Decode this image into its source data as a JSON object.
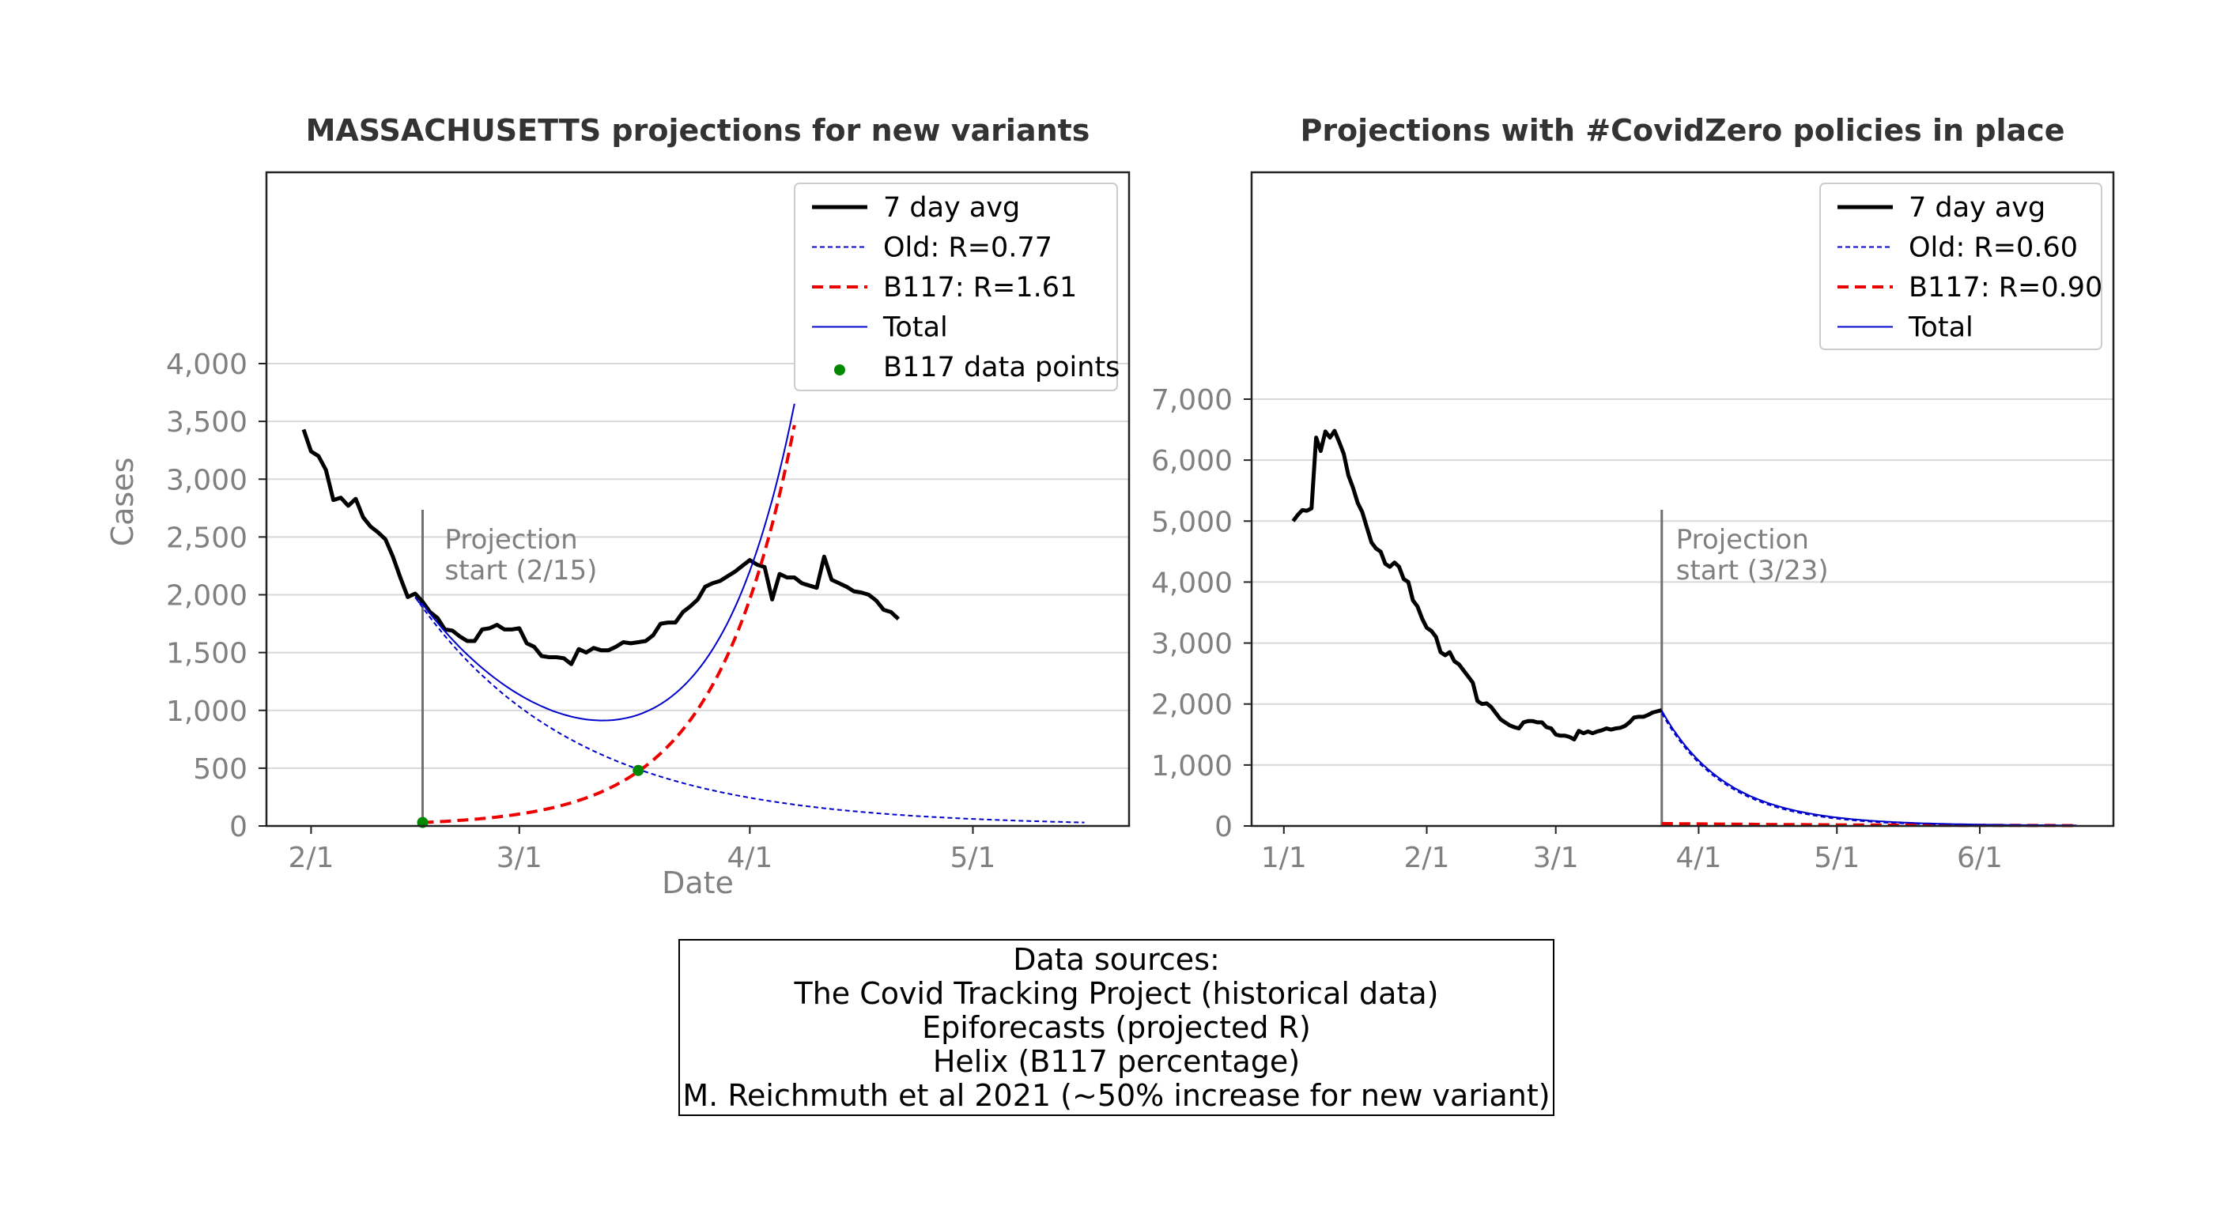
{
  "chart_data": [
    {
      "type": "line",
      "title": "MASSACHUSETTS projections for new variants",
      "xlabel": "Date",
      "ylabel": "Cases",
      "ylim": [
        0,
        4000
      ],
      "yticks": [
        0,
        500,
        1000,
        1500,
        2000,
        2500,
        3000,
        3500,
        4000
      ],
      "ytick_labels": [
        "0",
        "500",
        "1,000",
        "1,500",
        "2,000",
        "2,500",
        "3,000",
        "3,500",
        "4,000"
      ],
      "xticks": [
        0,
        28,
        59,
        89
      ],
      "xtick_labels": [
        "2/1",
        "3/1",
        "4/1",
        "5/1"
      ],
      "xlim": [
        -6,
        110
      ],
      "grid": "horizontal",
      "legend_position": "top-right",
      "annotation": {
        "text_line1": "Projection",
        "text_line2": "start (2/15)",
        "x": 15
      },
      "series": [
        {
          "name": "7 day avg",
          "style": "solid-thick",
          "color": "#000000",
          "x": [
            -1,
            0,
            1,
            2,
            3,
            4,
            5,
            6,
            7,
            8,
            9,
            10,
            11,
            12,
            13,
            14,
            15,
            16,
            17,
            18,
            19,
            20,
            21,
            22,
            23,
            24,
            25,
            26,
            27,
            28,
            29,
            30,
            31,
            32,
            33,
            34,
            35,
            36,
            37,
            38,
            39,
            40,
            41,
            42,
            43,
            44,
            45,
            46,
            47,
            48,
            49,
            50,
            51,
            52,
            53,
            54,
            55,
            56,
            57,
            58,
            59,
            60,
            61,
            62,
            63,
            64,
            65,
            66,
            67,
            68,
            69,
            70,
            71,
            72,
            73,
            74,
            75,
            76,
            77,
            78,
            79
          ],
          "y": [
            3430,
            3240,
            3200,
            3080,
            2820,
            2840,
            2770,
            2830,
            2670,
            2590,
            2540,
            2480,
            2330,
            2150,
            1980,
            2010,
            1940,
            1850,
            1800,
            1700,
            1690,
            1640,
            1600,
            1600,
            1700,
            1710,
            1740,
            1700,
            1700,
            1710,
            1580,
            1550,
            1470,
            1460,
            1460,
            1450,
            1400,
            1530,
            1500,
            1540,
            1520,
            1520,
            1550,
            1590,
            1580,
            1590,
            1600,
            1650,
            1750,
            1760,
            1760,
            1850,
            1900,
            1960,
            2070,
            2100,
            2120,
            2160,
            2200,
            2250,
            2300,
            2260,
            2240,
            1960,
            2180,
            2150,
            2150,
            2100,
            2080,
            2060,
            2330,
            2130,
            2100,
            2070,
            2030,
            2020,
            2000,
            1950,
            1870,
            1850,
            1790
          ]
        },
        {
          "name": "Old: R=0.77",
          "style": "dotted",
          "color": "#0000cc",
          "model": "exponential",
          "x_start": 14,
          "x_end": 104,
          "y_start": 1980,
          "rate": -0.0465
        },
        {
          "name": "B117: R=1.61",
          "style": "dashed",
          "color": "#ee0000",
          "model": "exponential",
          "x_start": 15,
          "x_end": 65,
          "y_start": 30,
          "rate": 0.095
        },
        {
          "name": "Total",
          "style": "solid-thin",
          "color": "#0000cc",
          "model": "sum",
          "x_start": 14,
          "x_end": 65
        },
        {
          "name": "B117 data points",
          "style": "markers",
          "color": "#008800",
          "x": [
            15,
            44
          ],
          "y": [
            30,
            480
          ]
        }
      ]
    },
    {
      "type": "line",
      "title": "Projections with #CovidZero policies in place",
      "xlabel": "",
      "ylabel": "",
      "ylim": [
        0,
        7000
      ],
      "yticks": [
        0,
        1000,
        2000,
        3000,
        4000,
        5000,
        6000,
        7000
      ],
      "ytick_labels": [
        "0",
        "1,000",
        "2,000",
        "3,000",
        "4,000",
        "5,000",
        "6,000",
        "7,000"
      ],
      "xticks": [
        0,
        31,
        59,
        90,
        120,
        151
      ],
      "xtick_labels": [
        "1/1",
        "2/1",
        "3/1",
        "4/1",
        "5/1",
        "6/1"
      ],
      "xlim": [
        -7,
        180
      ],
      "grid": "horizontal",
      "legend_position": "top-right",
      "annotation": {
        "text_line1": "Projection",
        "text_line2": "start (3/23)",
        "x": 82
      },
      "series": [
        {
          "name": "7 day avg",
          "style": "solid-thick",
          "color": "#000000",
          "x": [
            2,
            3,
            4,
            5,
            6,
            7,
            8,
            9,
            10,
            11,
            12,
            13,
            14,
            15,
            16,
            17,
            18,
            19,
            20,
            21,
            22,
            23,
            24,
            25,
            26,
            27,
            28,
            29,
            30,
            31,
            32,
            33,
            34,
            35,
            36,
            37,
            38,
            39,
            40,
            41,
            42,
            43,
            44,
            45,
            46,
            47,
            48,
            49,
            50,
            51,
            52,
            53,
            54,
            55,
            56,
            57,
            58,
            59,
            60,
            61,
            62,
            63,
            64,
            65,
            66,
            67,
            68,
            69,
            70,
            71,
            72,
            73,
            74,
            75,
            76,
            77,
            78,
            79,
            80,
            81,
            82
          ],
          "y": [
            5000,
            5100,
            5180,
            5170,
            5210,
            6370,
            6150,
            6470,
            6370,
            6480,
            6300,
            6100,
            5750,
            5550,
            5300,
            5150,
            4900,
            4650,
            4550,
            4500,
            4300,
            4250,
            4320,
            4250,
            4050,
            4000,
            3700,
            3600,
            3400,
            3250,
            3200,
            3100,
            2850,
            2800,
            2850,
            2700,
            2650,
            2550,
            2450,
            2350,
            2050,
            2000,
            2010,
            1950,
            1850,
            1750,
            1700,
            1650,
            1620,
            1600,
            1700,
            1720,
            1720,
            1700,
            1700,
            1620,
            1600,
            1500,
            1480,
            1480,
            1460,
            1420,
            1560,
            1520,
            1550,
            1520,
            1550,
            1570,
            1600,
            1580,
            1600,
            1610,
            1640,
            1700,
            1780,
            1790,
            1790,
            1820,
            1860,
            1880,
            1900
          ]
        },
        {
          "name": "Old: R=0.60",
          "style": "dotted",
          "color": "#0000cc",
          "model": "exponential",
          "x_start": 82,
          "x_end": 172,
          "y_start": 1850,
          "rate": -0.072
        },
        {
          "name": "B117: R=0.90",
          "style": "dashed",
          "color": "#ee0000",
          "model": "exponential",
          "x_start": 82,
          "x_end": 172,
          "y_start": 40,
          "rate": -0.02
        },
        {
          "name": "Total",
          "style": "solid-thin",
          "color": "#0000cc",
          "model": "sum",
          "x_start": 82,
          "x_end": 172
        }
      ]
    }
  ],
  "sources": {
    "lines": [
      "Data sources:",
      "The Covid Tracking Project (historical data)",
      "Epiforecasts (projected R)",
      "Helix (B117 percentage)",
      "M. Reichmuth et al 2021 (~50% increase for new variant)"
    ]
  }
}
